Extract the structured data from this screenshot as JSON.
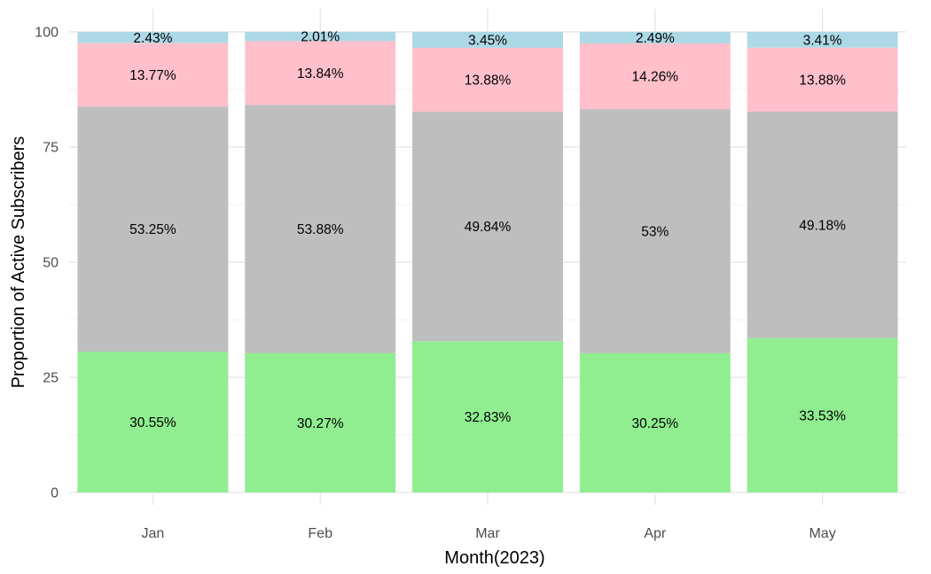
{
  "chart_data": {
    "type": "bar",
    "stacked": true,
    "title": "",
    "xlabel": "Month(2023)",
    "ylabel": "Proportion of Active Subscribers",
    "ylim": [
      0,
      100
    ],
    "yticks": [
      0,
      25,
      50,
      75,
      100
    ],
    "categories": [
      "Jan",
      "Feb",
      "Mar",
      "Apr",
      "May"
    ],
    "grid": true,
    "legend": "none",
    "series": [
      {
        "color": "#90ee90",
        "values": [
          30.55,
          30.27,
          32.83,
          30.25,
          33.53
        ],
        "labels": [
          "30.55%",
          "30.27%",
          "32.83%",
          "30.25%",
          "33.53%"
        ]
      },
      {
        "color": "#bebebe",
        "values": [
          53.25,
          53.88,
          49.84,
          53,
          49.18
        ],
        "labels": [
          "53.25%",
          "53.88%",
          "49.84%",
          "53%",
          "49.18%"
        ]
      },
      {
        "color": "#ffc0cb",
        "values": [
          13.77,
          13.84,
          13.88,
          14.26,
          13.88
        ],
        "labels": [
          "13.77%",
          "13.84%",
          "13.88%",
          "14.26%",
          "13.88%"
        ]
      },
      {
        "color": "#add8e6",
        "values": [
          2.43,
          2.01,
          3.45,
          2.49,
          3.41
        ],
        "labels": [
          "2.43%",
          "2.01%",
          "3.45%",
          "2.49%",
          "3.41%"
        ]
      }
    ]
  }
}
